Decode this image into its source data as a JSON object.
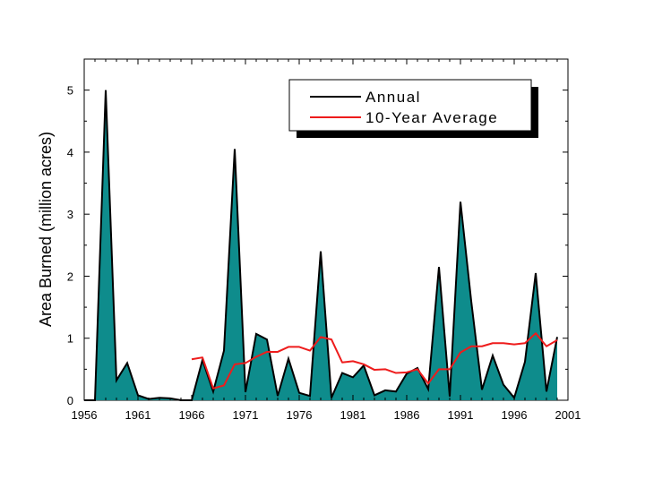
{
  "chart_data": {
    "type": "area",
    "ylabel": "Area Burned (million acres)",
    "xlabel": "",
    "xlim": [
      1956,
      2001
    ],
    "ylim": [
      0,
      5.5
    ],
    "x_ticks": [
      1956,
      1961,
      1966,
      1971,
      1976,
      1981,
      1986,
      1991,
      1996,
      2001
    ],
    "y_ticks": [
      0,
      1,
      2,
      3,
      4,
      5
    ],
    "grid": false,
    "legend_position": "top-right",
    "series": [
      {
        "name": "Annual",
        "kind": "filled-area",
        "line_color": "#000000",
        "fill_color": "#0e8c8c",
        "x": [
          1956,
          1957,
          1958,
          1959,
          1960,
          1961,
          1962,
          1963,
          1964,
          1965,
          1966,
          1967,
          1968,
          1969,
          1970,
          1971,
          1972,
          1973,
          1974,
          1975,
          1976,
          1977,
          1978,
          1979,
          1980,
          1981,
          1982,
          1983,
          1984,
          1985,
          1986,
          1987,
          1988,
          1989,
          1990,
          1991,
          1992,
          1993,
          1994,
          1995,
          1996,
          1997,
          1998,
          1999,
          2000
        ],
        "values": [
          0,
          0,
          5.0,
          0.32,
          0.6,
          0.08,
          0.02,
          0.04,
          0.03,
          0,
          0,
          0.65,
          0.14,
          0.8,
          4.05,
          0.13,
          1.07,
          0.98,
          0.07,
          0.67,
          0.12,
          0.07,
          2.4,
          0.04,
          0.44,
          0.37,
          0.56,
          0.08,
          0.16,
          0.14,
          0.43,
          0.52,
          0.18,
          2.15,
          0.06,
          3.2,
          1.6,
          0.17,
          0.72,
          0.25,
          0.04,
          0.62,
          2.05,
          0.14,
          1.02
        ]
      },
      {
        "name": "10-Year Average",
        "kind": "line",
        "line_color": "#ee1c1c",
        "x": [
          1966,
          1967,
          1968,
          1969,
          1970,
          1971,
          1972,
          1973,
          1974,
          1975,
          1976,
          1977,
          1978,
          1979,
          1980,
          1981,
          1982,
          1983,
          1984,
          1985,
          1986,
          1987,
          1988,
          1989,
          1990,
          1991,
          1992,
          1993,
          1994,
          1995,
          1996,
          1997,
          1998,
          1999,
          2000
        ],
        "values": [
          0.66,
          0.69,
          0.19,
          0.24,
          0.58,
          0.6,
          0.7,
          0.78,
          0.78,
          0.86,
          0.86,
          0.8,
          1.02,
          0.98,
          0.61,
          0.63,
          0.58,
          0.49,
          0.5,
          0.44,
          0.45,
          0.5,
          0.27,
          0.5,
          0.5,
          0.77,
          0.87,
          0.87,
          0.92,
          0.92,
          0.9,
          0.92,
          1.08,
          0.87,
          0.97
        ]
      }
    ]
  }
}
